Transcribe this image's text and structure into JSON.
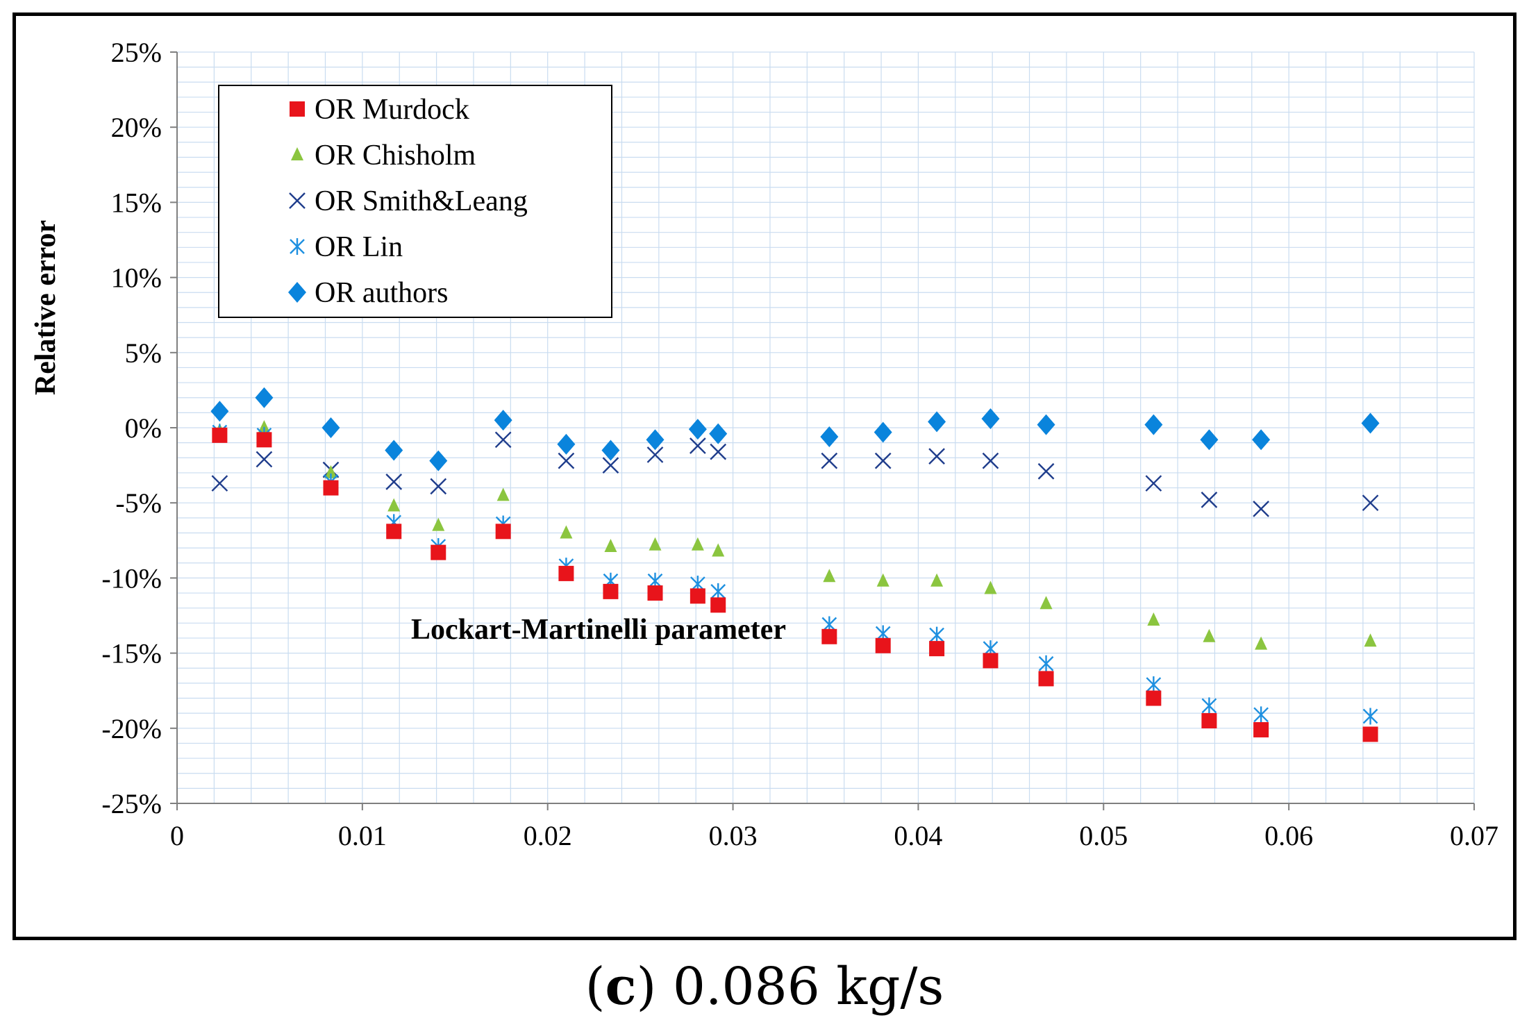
{
  "chart_data": {
    "type": "scatter",
    "title": "",
    "xlabel": "Lockart-Martinelli parameter",
    "ylabel": "Relative error",
    "xlim": [
      0,
      0.07
    ],
    "ylim": [
      -25,
      25
    ],
    "x_ticks": [
      "0",
      "0.01",
      "0.02",
      "0.03",
      "0.04",
      "0.05",
      "0.06",
      "0.07"
    ],
    "x_tick_values": [
      0,
      0.01,
      0.02,
      0.03,
      0.04,
      0.05,
      0.06,
      0.07
    ],
    "y_ticks": [
      "25%",
      "20%",
      "15%",
      "10%",
      "5%",
      "0%",
      "-5%",
      "-10%",
      "-15%",
      "-20%",
      "-25%"
    ],
    "y_tick_values": [
      25,
      20,
      15,
      10,
      5,
      0,
      -5,
      -10,
      -15,
      -20,
      -25
    ],
    "grid": true,
    "legend_position": "top-left",
    "x": [
      0.0023,
      0.0047,
      0.0083,
      0.0117,
      0.0141,
      0.0176,
      0.021,
      0.0234,
      0.0258,
      0.0281,
      0.0292,
      0.0352,
      0.0381,
      0.041,
      0.0439,
      0.0469,
      0.0527,
      0.0557,
      0.0585,
      0.0644
    ],
    "series": [
      {
        "name": "OR Murdock",
        "marker": "square",
        "color": "#e8141b",
        "values": [
          -0.5,
          -0.8,
          -4.0,
          -6.9,
          -8.3,
          -6.9,
          -9.7,
          -10.9,
          -11.0,
          -11.2,
          -11.8,
          -13.9,
          -14.5,
          -14.7,
          -15.5,
          -16.7,
          -18.0,
          -19.5,
          -20.1,
          -20.4
        ]
      },
      {
        "name": "OR Chisholm",
        "marker": "triangle",
        "color": "#8bc53f",
        "values": [
          -0.2,
          0.0,
          -3.0,
          -5.2,
          -6.5,
          -4.5,
          -7.0,
          -7.9,
          -7.8,
          -7.8,
          -8.2,
          -9.9,
          -10.2,
          -10.2,
          -10.7,
          -11.7,
          -12.8,
          -13.9,
          -14.4,
          -14.2
        ]
      },
      {
        "name": "OR Smith&Leang",
        "marker": "x",
        "color": "#1f3d8c",
        "values": [
          -3.7,
          -2.1,
          -2.8,
          -3.6,
          -3.9,
          -0.8,
          -2.2,
          -2.5,
          -1.8,
          -1.2,
          -1.6,
          -2.2,
          -2.2,
          -1.9,
          -2.2,
          -2.9,
          -3.7,
          -4.8,
          -5.4,
          -5.0
        ]
      },
      {
        "name": "OR Lin",
        "marker": "asterisk",
        "color": "#1e90e0",
        "values": [
          -0.3,
          -0.5,
          -3.6,
          -6.3,
          -7.9,
          -6.4,
          -9.2,
          -10.2,
          -10.2,
          -10.4,
          -10.9,
          -13.1,
          -13.7,
          -13.8,
          -14.7,
          -15.7,
          -17.1,
          -18.5,
          -19.1,
          -19.2
        ]
      },
      {
        "name": "OR authors",
        "marker": "diamond",
        "color": "#0a84dc",
        "values": [
          1.1,
          2.0,
          0.0,
          -1.5,
          -2.2,
          0.5,
          -1.1,
          -1.5,
          -0.8,
          -0.1,
          -0.4,
          -0.6,
          -0.3,
          0.4,
          0.6,
          0.2,
          0.2,
          -0.8,
          -0.8,
          0.3
        ]
      }
    ]
  },
  "caption": {
    "label": "c",
    "text": "0.086 kg/s"
  }
}
